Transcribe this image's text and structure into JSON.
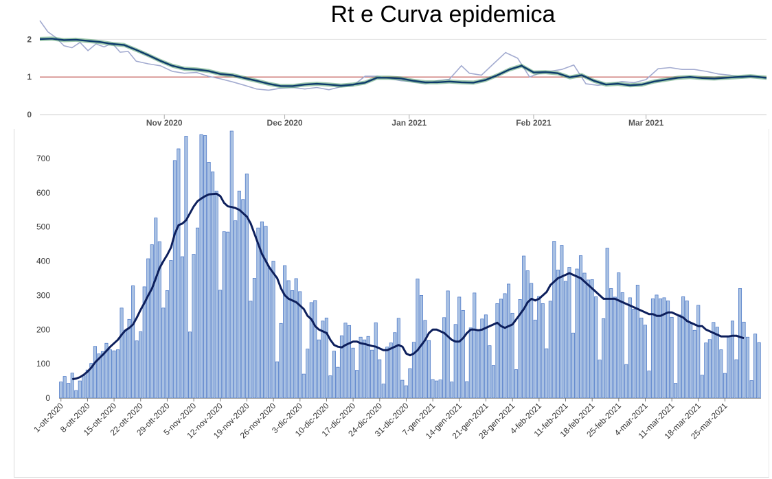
{
  "title": "Rt e Curva epidemica",
  "chart_data": [
    {
      "type": "line",
      "title": "",
      "xlabel": "",
      "ylabel": "",
      "ylim": [
        0,
        2.5
      ],
      "yticks": [
        "0",
        "1",
        "2"
      ],
      "xtick_labels": [
        "Nov 2020",
        "Dec 2020",
        "Jan 2021",
        "Feb 2021",
        "Mar 2021"
      ],
      "xtick_dates": [
        "2020-11-01",
        "2020-12-01",
        "2021-01-01",
        "2021-02-01",
        "2021-03-01"
      ],
      "x_start": "2020-10-01",
      "x_end": "2021-03-31",
      "threshold": 1,
      "colors": {
        "rt": "#0d3a6b",
        "band": "#4f9a6a",
        "raw": "#a3abd0",
        "threshold": "#c0504d"
      },
      "series": [
        {
          "kind": "rt",
          "points": [
            [
              "2020-10-01",
              2.01
            ],
            [
              "2020-10-04",
              2.02
            ],
            [
              "2020-10-07",
              1.98
            ],
            [
              "2020-10-10",
              1.99
            ],
            [
              "2020-10-13",
              1.96
            ],
            [
              "2020-10-16",
              1.93
            ],
            [
              "2020-10-19",
              1.88
            ],
            [
              "2020-10-22",
              1.85
            ],
            [
              "2020-10-25",
              1.72
            ],
            [
              "2020-10-28",
              1.58
            ],
            [
              "2020-10-31",
              1.43
            ],
            [
              "2020-11-03",
              1.3
            ],
            [
              "2020-11-06",
              1.22
            ],
            [
              "2020-11-09",
              1.2
            ],
            [
              "2020-11-12",
              1.16
            ],
            [
              "2020-11-15",
              1.08
            ],
            [
              "2020-11-18",
              1.05
            ],
            [
              "2020-11-21",
              0.97
            ],
            [
              "2020-11-24",
              0.9
            ],
            [
              "2020-11-27",
              0.82
            ],
            [
              "2020-11-30",
              0.76
            ],
            [
              "2020-12-03",
              0.76
            ],
            [
              "2020-12-06",
              0.8
            ],
            [
              "2020-12-09",
              0.82
            ],
            [
              "2020-12-12",
              0.8
            ],
            [
              "2020-12-15",
              0.77
            ],
            [
              "2020-12-18",
              0.8
            ],
            [
              "2020-12-21",
              0.85
            ],
            [
              "2020-12-24",
              0.98
            ],
            [
              "2020-12-27",
              0.98
            ],
            [
              "2020-12-30",
              0.96
            ],
            [
              "2021-01-02",
              0.9
            ],
            [
              "2021-01-05",
              0.86
            ],
            [
              "2021-01-08",
              0.86
            ],
            [
              "2021-01-11",
              0.88
            ],
            [
              "2021-01-14",
              0.86
            ],
            [
              "2021-01-17",
              0.85
            ],
            [
              "2021-01-20",
              0.92
            ],
            [
              "2021-01-23",
              1.05
            ],
            [
              "2021-01-26",
              1.2
            ],
            [
              "2021-01-29",
              1.3
            ],
            [
              "2021-02-01",
              1.12
            ],
            [
              "2021-02-04",
              1.13
            ],
            [
              "2021-02-07",
              1.1
            ],
            [
              "2021-02-10",
              0.99
            ],
            [
              "2021-02-13",
              1.05
            ],
            [
              "2021-02-16",
              0.9
            ],
            [
              "2021-02-19",
              0.8
            ],
            [
              "2021-02-22",
              0.82
            ],
            [
              "2021-02-25",
              0.78
            ],
            [
              "2021-02-28",
              0.8
            ],
            [
              "2021-03-03",
              0.88
            ],
            [
              "2021-03-06",
              0.93
            ],
            [
              "2021-03-09",
              0.98
            ],
            [
              "2021-03-12",
              1.0
            ],
            [
              "2021-03-15",
              0.97
            ],
            [
              "2021-03-18",
              0.96
            ],
            [
              "2021-03-21",
              0.98
            ],
            [
              "2021-03-24",
              1.0
            ],
            [
              "2021-03-27",
              1.02
            ],
            [
              "2021-03-31",
              0.98
            ]
          ]
        },
        {
          "kind": "raw",
          "points": [
            [
              "2020-10-01",
              2.5
            ],
            [
              "2020-10-03",
              2.2
            ],
            [
              "2020-10-05",
              2.05
            ],
            [
              "2020-10-07",
              1.83
            ],
            [
              "2020-10-09",
              1.78
            ],
            [
              "2020-10-11",
              1.92
            ],
            [
              "2020-10-13",
              1.7
            ],
            [
              "2020-10-15",
              1.88
            ],
            [
              "2020-10-17",
              1.8
            ],
            [
              "2020-10-19",
              1.9
            ],
            [
              "2020-10-21",
              1.66
            ],
            [
              "2020-10-23",
              1.68
            ],
            [
              "2020-10-25",
              1.42
            ],
            [
              "2020-10-28",
              1.35
            ],
            [
              "2020-10-31",
              1.3
            ],
            [
              "2020-11-03",
              1.15
            ],
            [
              "2020-11-06",
              1.1
            ],
            [
              "2020-11-09",
              1.12
            ],
            [
              "2020-11-12",
              1.02
            ],
            [
              "2020-11-15",
              0.95
            ],
            [
              "2020-11-18",
              0.87
            ],
            [
              "2020-11-21",
              0.78
            ],
            [
              "2020-11-24",
              0.68
            ],
            [
              "2020-11-27",
              0.65
            ],
            [
              "2020-11-30",
              0.7
            ],
            [
              "2020-12-03",
              0.72
            ],
            [
              "2020-12-06",
              0.68
            ],
            [
              "2020-12-09",
              0.72
            ],
            [
              "2020-12-12",
              0.66
            ],
            [
              "2020-12-15",
              0.74
            ],
            [
              "2020-12-18",
              0.77
            ],
            [
              "2020-12-21",
              1.02
            ],
            [
              "2020-12-24",
              1.02
            ],
            [
              "2020-12-27",
              0.96
            ],
            [
              "2020-12-30",
              0.9
            ],
            [
              "2021-01-02",
              0.88
            ],
            [
              "2021-01-05",
              0.82
            ],
            [
              "2021-01-08",
              0.9
            ],
            [
              "2021-01-11",
              0.94
            ],
            [
              "2021-01-14",
              1.3
            ],
            [
              "2021-01-16",
              1.1
            ],
            [
              "2021-01-19",
              1.05
            ],
            [
              "2021-01-22",
              1.35
            ],
            [
              "2021-01-25",
              1.65
            ],
            [
              "2021-01-28",
              1.5
            ],
            [
              "2021-01-31",
              1.0
            ],
            [
              "2021-02-02",
              1.08
            ],
            [
              "2021-02-05",
              1.15
            ],
            [
              "2021-02-08",
              1.2
            ],
            [
              "2021-02-11",
              1.32
            ],
            [
              "2021-02-14",
              0.82
            ],
            [
              "2021-02-17",
              0.78
            ],
            [
              "2021-02-20",
              0.82
            ],
            [
              "2021-02-23",
              0.88
            ],
            [
              "2021-02-26",
              0.85
            ],
            [
              "2021-03-01",
              0.93
            ],
            [
              "2021-03-04",
              1.22
            ],
            [
              "2021-03-07",
              1.25
            ],
            [
              "2021-03-10",
              1.2
            ],
            [
              "2021-03-13",
              1.2
            ],
            [
              "2021-03-16",
              1.15
            ],
            [
              "2021-03-19",
              1.08
            ],
            [
              "2021-03-22",
              1.05
            ],
            [
              "2021-03-25",
              0.98
            ],
            [
              "2021-03-28",
              1.02
            ],
            [
              "2021-03-31",
              0.95
            ]
          ]
        }
      ]
    },
    {
      "type": "bar",
      "title": "",
      "xlabel": "",
      "ylabel": "",
      "ylim": [
        0,
        780
      ],
      "yticks": [
        "0",
        "100",
        "200",
        "300",
        "400",
        "500",
        "600",
        "700"
      ],
      "xtick_labels": [
        "1-ott-2020",
        "8-ott-2020",
        "15-ott-2020",
        "22-ott-2020",
        "29-ott-2020",
        "5-nov-2020",
        "12-nov-2020",
        "19-nov-2020",
        "26-nov-2020",
        "3-dic-2020",
        "10-dic-2020",
        "17-dic-2020",
        "24-dic-2020",
        "31-dic-2020",
        "7-gen-2021",
        "14-gen-2021",
        "21-gen-2021",
        "28-gen-2021",
        "4-feb-2021",
        "11-feb-2021",
        "18-feb-2021",
        "25-feb-2021",
        "4-mar-2021",
        "11-mar-2021",
        "18-mar-2021",
        "25-mar-2021"
      ],
      "colors": {
        "bar_fill": "#a9c1e3",
        "bar_edge": "#4472c4",
        "moving_avg": "#0d1f5c"
      },
      "values": [
        47,
        63,
        43,
        73,
        22,
        50,
        65,
        82,
        101,
        151,
        129,
        136,
        160,
        141,
        138,
        141,
        263,
        198,
        230,
        328,
        167,
        194,
        325,
        407,
        448,
        526,
        457,
        263,
        314,
        402,
        694,
        728,
        413,
        765,
        193,
        420,
        497,
        770,
        767,
        689,
        661,
        605,
        315,
        486,
        485,
        780,
        518,
        605,
        580,
        655,
        283,
        350,
        497,
        515,
        502,
        381,
        400,
        106,
        218,
        387,
        343,
        314,
        349,
        311,
        70,
        143,
        279,
        285,
        170,
        225,
        234,
        65,
        137,
        90,
        182,
        219,
        212,
        146,
        81,
        178,
        170,
        180,
        140,
        220,
        112,
        41,
        149,
        161,
        191,
        233,
        52,
        36,
        86,
        163,
        348,
        300,
        227,
        168,
        54,
        50,
        53,
        235,
        313,
        47,
        215,
        295,
        256,
        48,
        205,
        307,
        200,
        231,
        243,
        153,
        95,
        276,
        289,
        305,
        333,
        248,
        83,
        288,
        415,
        372,
        335,
        228,
        297,
        276,
        144,
        283,
        458,
        374,
        446,
        341,
        382,
        190,
        377,
        416,
        365,
        345,
        346,
        296,
        111,
        232,
        438,
        320,
        295,
        366,
        308,
        98,
        293,
        260,
        330,
        234,
        213,
        79,
        290,
        301,
        290,
        293,
        284,
        236,
        43,
        243,
        296,
        284,
        217,
        198,
        271,
        67,
        161,
        171,
        221,
        207,
        141,
        72,
        180,
        225,
        112,
        320,
        222,
        178,
        51,
        187,
        162
      ],
      "moving_avg": [
        null,
        null,
        null,
        55,
        57,
        61,
        68,
        77,
        89,
        104,
        115,
        126,
        138,
        150,
        160,
        170,
        185,
        198,
        205,
        215,
        235,
        258,
        278,
        300,
        320,
        350,
        380,
        400,
        418,
        440,
        480,
        505,
        510,
        520,
        540,
        560,
        575,
        583,
        590,
        595,
        596,
        597,
        590,
        570,
        560,
        558,
        555,
        550,
        540,
        530,
        510,
        480,
        450,
        420,
        400,
        380,
        365,
        350,
        320,
        300,
        290,
        285,
        280,
        270,
        260,
        240,
        230,
        210,
        200,
        195,
        190,
        170,
        155,
        150,
        148,
        155,
        160,
        165,
        165,
        160,
        158,
        155,
        152,
        150,
        145,
        140,
        140,
        145,
        150,
        155,
        150,
        130,
        125,
        130,
        140,
        155,
        170,
        190,
        200,
        200,
        195,
        190,
        180,
        170,
        165,
        165,
        175,
        190,
        200,
        200,
        198,
        200,
        205,
        210,
        215,
        220,
        210,
        205,
        210,
        215,
        230,
        245,
        260,
        280,
        290,
        285,
        290,
        300,
        310,
        330,
        340,
        350,
        355,
        360,
        365,
        360,
        355,
        350,
        340,
        330,
        320,
        310,
        300,
        290,
        290,
        290,
        290,
        285,
        280,
        275,
        270,
        265,
        260,
        255,
        250,
        245,
        245,
        240,
        240,
        245,
        250,
        250,
        245,
        240,
        235,
        225,
        220,
        215,
        210,
        210,
        200,
        195,
        190,
        185,
        180,
        180,
        180,
        182,
        182,
        178,
        175
      ],
      "moving_avg_start_index": 3
    }
  ]
}
